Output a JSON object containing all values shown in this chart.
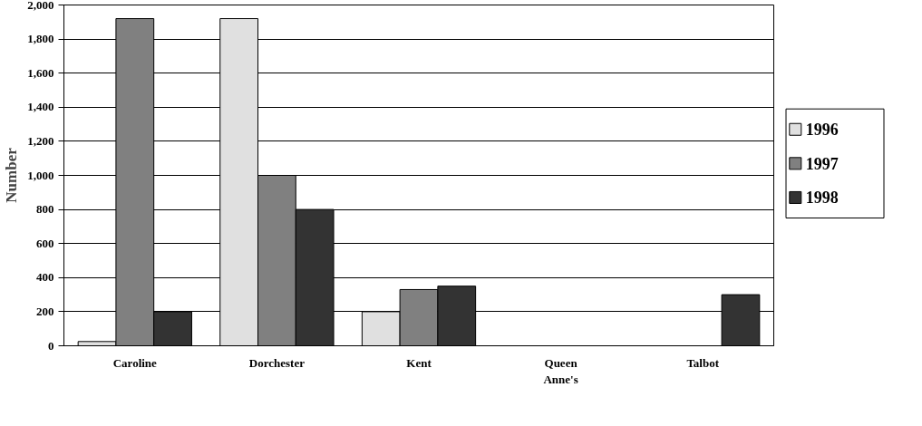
{
  "chart_data": {
    "type": "bar",
    "ylabel": "Number",
    "categories": [
      "Caroline",
      "Dorchester",
      "Kent",
      "Queen Anne's",
      "Talbot"
    ],
    "series": [
      {
        "name": "1996",
        "color": "#e0e0e0",
        "values": [
          25,
          1920,
          200,
          0,
          0
        ]
      },
      {
        "name": "1997",
        "color": "#808080",
        "values": [
          1920,
          1000,
          330,
          0,
          0
        ]
      },
      {
        "name": "1998",
        "color": "#333333",
        "values": [
          200,
          800,
          350,
          0,
          300
        ]
      }
    ],
    "ylim": [
      0,
      2000
    ],
    "yticks": [
      {
        "value": 0,
        "label": "0"
      },
      {
        "value": 200,
        "label": "200"
      },
      {
        "value": 400,
        "label": "400"
      },
      {
        "value": 600,
        "label": "600"
      },
      {
        "value": 800,
        "label": "800"
      },
      {
        "value": 1000,
        "label": "1,000"
      },
      {
        "value": 1200,
        "label": "1,200"
      },
      {
        "value": 1400,
        "label": "1,400"
      },
      {
        "value": 1600,
        "label": "1,600"
      },
      {
        "value": 1800,
        "label": "1,800"
      },
      {
        "value": 2000,
        "label": "2,000"
      }
    ],
    "grid": "y",
    "legend": "right"
  }
}
